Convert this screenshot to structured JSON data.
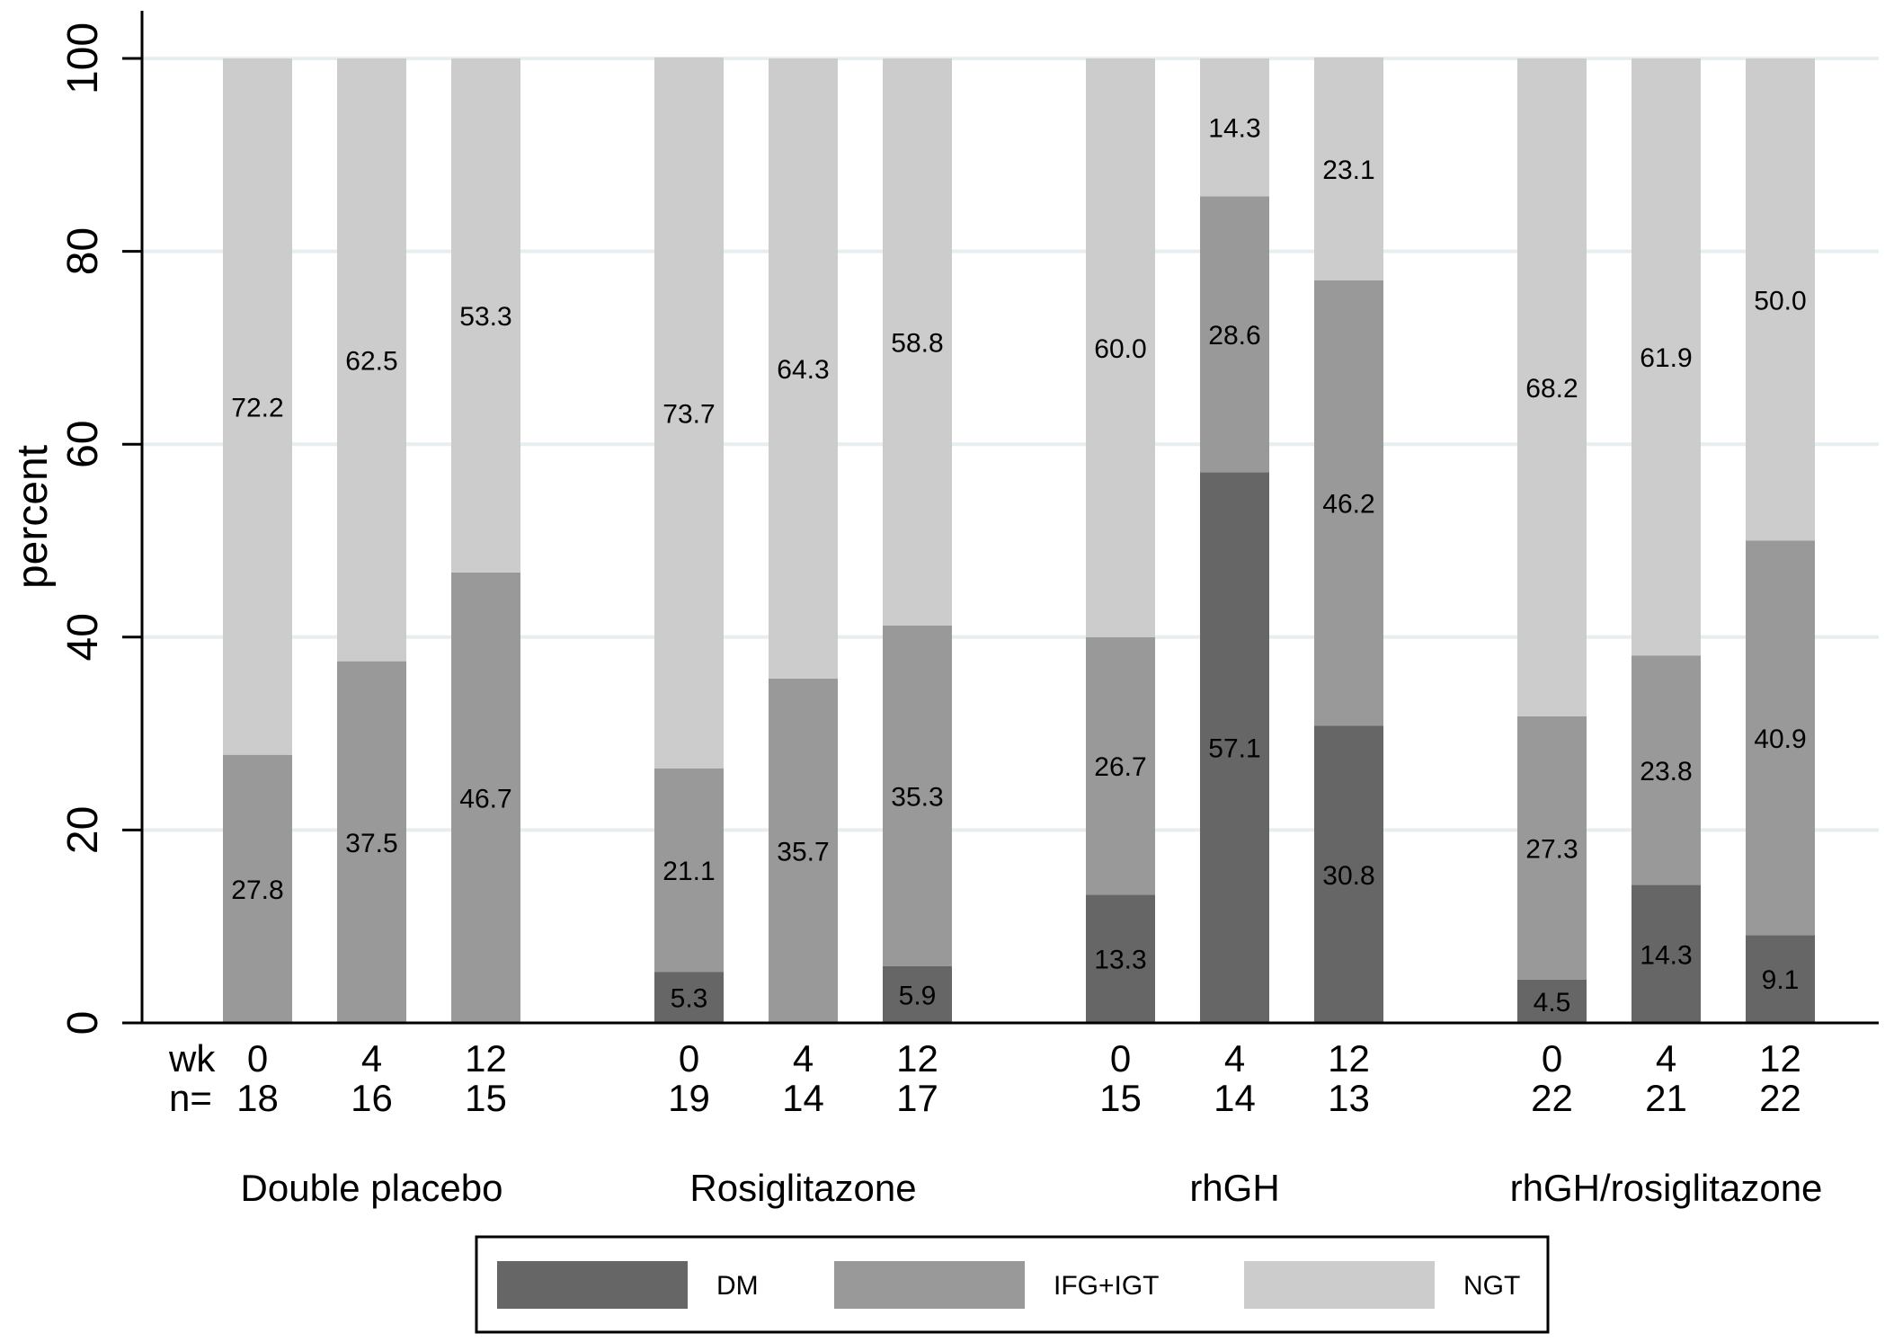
{
  "chart_data": {
    "type": "bar",
    "stacked": true,
    "ylabel": "percent",
    "ylim": [
      0,
      100
    ],
    "yticks": [
      0,
      20,
      40,
      60,
      80,
      100
    ],
    "grid": true,
    "row_label_wk": "wk",
    "row_label_n": "n=",
    "legend_placement": "bottom",
    "series": [
      {
        "name": "DM",
        "color": "#666666"
      },
      {
        "name": "IFG+IGT",
        "color": "#999999"
      },
      {
        "name": "NGT",
        "color": "#cccccc"
      }
    ],
    "groups": [
      {
        "label": "Double placebo",
        "bars": [
          {
            "wk": "0",
            "n": "18",
            "DM": 0,
            "IFG_IGT": 27.8,
            "NGT": 72.2,
            "DM_label": "",
            "IFG_IGT_label": "27.8",
            "NGT_label": "72.2"
          },
          {
            "wk": "4",
            "n": "16",
            "DM": 0,
            "IFG_IGT": 37.5,
            "NGT": 62.5,
            "DM_label": "",
            "IFG_IGT_label": "37.5",
            "NGT_label": "62.5"
          },
          {
            "wk": "12",
            "n": "15",
            "DM": 0,
            "IFG_IGT": 46.7,
            "NGT": 53.3,
            "DM_label": "",
            "IFG_IGT_label": "46.7",
            "NGT_label": "53.3"
          }
        ]
      },
      {
        "label": "Rosiglitazone",
        "bars": [
          {
            "wk": "0",
            "n": "19",
            "DM": 5.3,
            "IFG_IGT": 21.1,
            "NGT": 73.7,
            "DM_label": "5.3",
            "IFG_IGT_label": "21.1",
            "NGT_label": "73.7"
          },
          {
            "wk": "4",
            "n": "14",
            "DM": 0,
            "IFG_IGT": 35.7,
            "NGT": 64.3,
            "DM_label": "",
            "IFG_IGT_label": "35.7",
            "NGT_label": "64.3"
          },
          {
            "wk": "12",
            "n": "17",
            "DM": 5.9,
            "IFG_IGT": 35.3,
            "NGT": 58.8,
            "DM_label": "5.9",
            "IFG_IGT_label": "35.3",
            "NGT_label": "58.8"
          }
        ]
      },
      {
        "label": "rhGH",
        "bars": [
          {
            "wk": "0",
            "n": "15",
            "DM": 13.3,
            "IFG_IGT": 26.7,
            "NGT": 60.0,
            "DM_label": "13.3",
            "IFG_IGT_label": "26.7",
            "NGT_label": "60.0"
          },
          {
            "wk": "4",
            "n": "14",
            "DM": 57.1,
            "IFG_IGT": 28.6,
            "NGT": 14.3,
            "DM_label": "57.1",
            "IFG_IGT_label": "28.6",
            "NGT_label": "14.3"
          },
          {
            "wk": "12",
            "n": "13",
            "DM": 30.8,
            "IFG_IGT": 46.2,
            "NGT": 23.1,
            "DM_label": "30.8",
            "IFG_IGT_label": "46.2",
            "NGT_label": "23.1"
          }
        ]
      },
      {
        "label": "rhGH/rosiglitazone",
        "bars": [
          {
            "wk": "0",
            "n": "22",
            "DM": 4.5,
            "IFG_IGT": 27.3,
            "NGT": 68.2,
            "DM_label": "4.5",
            "IFG_IGT_label": "27.3",
            "NGT_label": "68.2"
          },
          {
            "wk": "4",
            "n": "21",
            "DM": 14.3,
            "IFG_IGT": 23.8,
            "NGT": 61.9,
            "DM_label": "14.3",
            "IFG_IGT_label": "23.8",
            "NGT_label": "61.9"
          },
          {
            "wk": "12",
            "n": "22",
            "DM": 9.1,
            "IFG_IGT": 40.9,
            "NGT": 50.0,
            "DM_label": "9.1",
            "IFG_IGT_label": "40.9",
            "NGT_label": "50.0"
          }
        ]
      }
    ]
  }
}
